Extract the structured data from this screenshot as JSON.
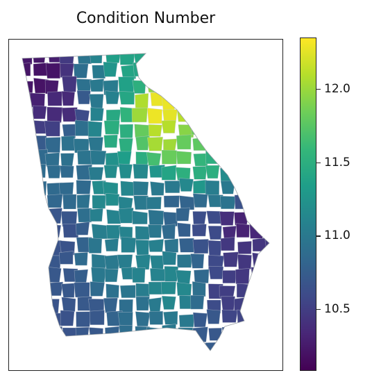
{
  "title": "Condition Number",
  "colorbar": {
    "min": 10.08,
    "max": 12.35,
    "ticks": [
      {
        "value": 12.0,
        "label": "12.0"
      },
      {
        "value": 11.5,
        "label": "11.5"
      },
      {
        "value": 11.0,
        "label": "11.0"
      },
      {
        "value": 10.5,
        "label": "10.5"
      }
    ],
    "colormap": "viridis",
    "stops": [
      "#440154",
      "#482777",
      "#3e4a89",
      "#31688e",
      "#26828e",
      "#1f9e89",
      "#35b779",
      "#6ece58",
      "#b5de2b",
      "#fde725"
    ]
  },
  "map": {
    "region": "Georgia (USA) counties",
    "value_pattern": {
      "northwest": 10.2,
      "north_central": 11.3,
      "northeast": 12.3,
      "central": 11.1,
      "east_coast": 10.5,
      "southwest": 10.7,
      "south_central": 11.0
    }
  }
}
